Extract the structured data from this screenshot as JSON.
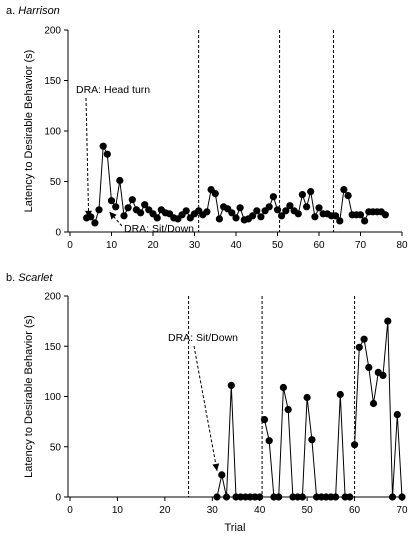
{
  "chart_data": [
    {
      "type": "scatter",
      "panel_letter": "a.",
      "panel_name": "Harrison",
      "ylabel": "Latency to Desirable Behavior (s)",
      "xlabel": "",
      "xlim": [
        0,
        80
      ],
      "ylim": [
        0,
        200
      ],
      "xticks": [
        0,
        10,
        20,
        30,
        40,
        50,
        60,
        70,
        80
      ],
      "yticks": [
        0,
        50,
        100,
        150,
        200
      ],
      "phase_lines": [
        31,
        50.5,
        63.5
      ],
      "annotations": [
        {
          "text": "DRA: Head turn",
          "arrow_to": [
            4.5,
            14
          ]
        },
        {
          "text": "DRA: Sit/Down",
          "arrow_to": [
            9.5,
            20
          ]
        }
      ],
      "segments": [
        {
          "x": [
            4,
            5,
            6,
            7,
            8,
            9,
            10,
            11,
            12,
            13,
            14,
            15,
            16,
            17,
            18,
            19,
            20,
            21,
            22,
            23,
            24,
            25,
            26,
            27,
            28,
            29,
            30
          ],
          "y": [
            14,
            15,
            9,
            22,
            85,
            77,
            31,
            25,
            51,
            16,
            24,
            32,
            22,
            19,
            27,
            22,
            18,
            14,
            22,
            19,
            18,
            14,
            13,
            17,
            21,
            14,
            18
          ]
        },
        {
          "x": [
            31,
            32,
            33,
            34,
            35,
            36,
            37,
            38,
            39,
            40,
            41,
            42,
            43,
            44,
            45,
            46,
            47,
            48,
            49,
            50
          ],
          "y": [
            21,
            17,
            20,
            42,
            38,
            13,
            25,
            23,
            19,
            14,
            24,
            12,
            13,
            16,
            21,
            15,
            21,
            25,
            35,
            22
          ]
        },
        {
          "x": [
            51,
            52,
            53,
            54,
            55,
            56,
            57,
            58,
            59,
            60,
            61,
            62,
            63
          ],
          "y": [
            16,
            21,
            26,
            21,
            18,
            37,
            25,
            40,
            15,
            24,
            18,
            18,
            16
          ]
        },
        {
          "x": [
            64,
            65,
            66,
            67,
            68,
            69,
            70,
            71,
            72,
            73,
            74,
            75,
            76
          ],
          "y": [
            16,
            11,
            42,
            36,
            17,
            17,
            17,
            11,
            20,
            20,
            20,
            20,
            17
          ]
        }
      ]
    },
    {
      "type": "scatter",
      "panel_letter": "b.",
      "panel_name": "Scarlet",
      "ylabel": "Latency to Desirable Behavior (s)",
      "xlabel": "Trial",
      "xlim": [
        0,
        70
      ],
      "ylim": [
        0,
        200
      ],
      "xticks": [
        0,
        10,
        20,
        30,
        40,
        50,
        60,
        70
      ],
      "yticks": [
        0,
        50,
        100,
        150,
        200
      ],
      "phase_lines": [
        25,
        40.5,
        60
      ],
      "annotations": [
        {
          "text": "DRA: Sit/Down",
          "arrow_to": [
            31,
            26
          ]
        }
      ],
      "segments": [
        {
          "x": [
            31,
            32,
            33,
            34,
            35,
            36,
            37,
            38,
            39,
            40
          ],
          "y": [
            0,
            22,
            0,
            111,
            0,
            0,
            0,
            0,
            0,
            0
          ]
        },
        {
          "x": [
            41,
            42,
            43,
            44,
            45,
            46,
            47,
            48,
            49,
            50,
            51,
            52,
            53,
            54,
            55,
            56,
            57,
            58,
            59
          ],
          "y": [
            77,
            56,
            0,
            0,
            109,
            87,
            0,
            0,
            0,
            99,
            57,
            0,
            0,
            0,
            0,
            0,
            102,
            0,
            0
          ]
        },
        {
          "x": [
            60,
            61,
            62,
            63,
            64,
            65,
            66,
            67,
            68,
            69,
            70
          ],
          "y": [
            52,
            149,
            157,
            129,
            93,
            124,
            121,
            175,
            0,
            82,
            0
          ]
        }
      ]
    }
  ]
}
